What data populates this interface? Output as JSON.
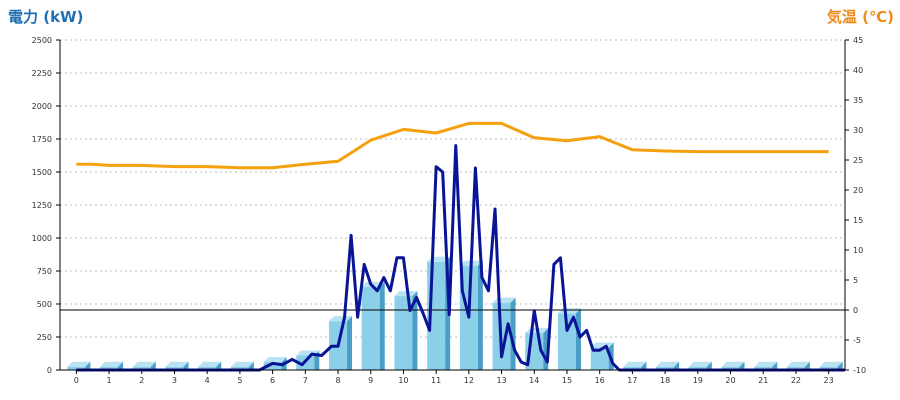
{
  "chart_data": {
    "type": "bar+line",
    "left_axis_title": "電力 (kW)",
    "right_axis_title": "気温 (℃)",
    "x_categories": [
      "0",
      "1",
      "2",
      "3",
      "4",
      "5",
      "6",
      "7",
      "8",
      "9",
      "10",
      "11",
      "12",
      "13",
      "14",
      "15",
      "16",
      "17",
      "18",
      "19",
      "20",
      "21",
      "22",
      "23"
    ],
    "left_ylim": [
      0,
      2500
    ],
    "left_ticks": [
      0,
      250,
      500,
      750,
      1000,
      1250,
      1500,
      1750,
      2000,
      2250,
      2500
    ],
    "right_ylim": [
      -10,
      45
    ],
    "right_ticks": [
      -10,
      -5,
      0,
      5,
      10,
      15,
      20,
      25,
      30,
      35,
      40,
      45
    ],
    "grid": true,
    "colors": {
      "bar": "#8ccfe8",
      "bar_side": "#4a9ec8",
      "power_line": "#0a1496",
      "temp_line": "#f5a00f",
      "zero_line": "#000000",
      "left_title": "#1f6fb4",
      "right_title": "#f08a1c"
    },
    "series": [
      {
        "type": "bar",
        "axis": "left",
        "values": [
          25,
          25,
          25,
          25,
          25,
          25,
          60,
          110,
          370,
          630,
          560,
          820,
          790,
          510,
          280,
          430,
          170,
          25,
          25,
          25,
          25,
          25,
          25,
          25
        ]
      },
      {
        "type": "line",
        "axis": "left",
        "x": [
          0,
          5.6,
          6.0,
          6.3,
          6.6,
          6.9,
          7.2,
          7.5,
          7.8,
          8.0,
          8.2,
          8.4,
          8.6,
          8.8,
          9.0,
          9.2,
          9.4,
          9.6,
          9.8,
          10.0,
          10.2,
          10.4,
          10.6,
          10.8,
          11.0,
          11.2,
          11.4,
          11.6,
          11.8,
          12.0,
          12.2,
          12.4,
          12.6,
          12.8,
          13.0,
          13.2,
          13.4,
          13.6,
          13.8,
          14.0,
          14.2,
          14.4,
          14.6,
          14.8,
          15.0,
          15.2,
          15.4,
          15.6,
          15.8,
          16.0,
          16.2,
          16.4,
          16.6,
          23.5
        ],
        "values": [
          0,
          0,
          50,
          40,
          80,
          40,
          120,
          110,
          180,
          180,
          400,
          1020,
          400,
          800,
          650,
          600,
          700,
          600,
          850,
          850,
          450,
          550,
          430,
          300,
          1540,
          1500,
          420,
          1700,
          600,
          400,
          1530,
          700,
          600,
          1220,
          100,
          350,
          150,
          60,
          40,
          450,
          150,
          60,
          800,
          850,
          300,
          400,
          250,
          300,
          150,
          150,
          180,
          50,
          0,
          0
        ]
      },
      {
        "type": "line",
        "axis": "right",
        "x": [
          0,
          0.5,
          1,
          2,
          3,
          4,
          5,
          6,
          7,
          8,
          9,
          10,
          11,
          12,
          13,
          14,
          15,
          16,
          17,
          18,
          19,
          20,
          21,
          22,
          23
        ],
        "values": [
          24.3,
          24.3,
          24.1,
          24.1,
          23.9,
          23.9,
          23.7,
          23.7,
          24.3,
          24.8,
          28.3,
          30.1,
          29.5,
          31.1,
          31.1,
          28.7,
          28.2,
          28.9,
          26.7,
          26.5,
          26.4,
          26.4,
          26.4,
          26.4,
          26.4
        ]
      }
    ]
  }
}
